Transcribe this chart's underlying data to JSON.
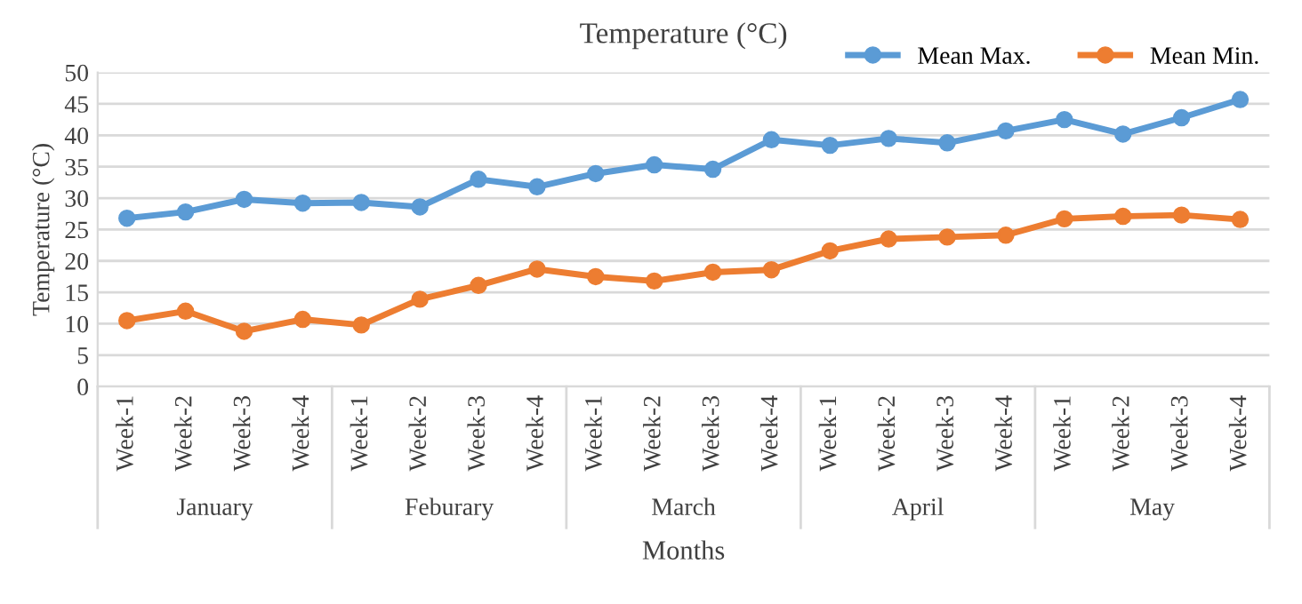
{
  "chart_data": {
    "type": "line",
    "title": "Temperature (°C)",
    "xlabel": "Months",
    "ylabel": "Temperature (°C)",
    "categories": [
      "Week-1",
      "Week-2",
      "Week-3",
      "Week-4",
      "Week-1",
      "Week-2",
      "Week-3",
      "Week-4",
      "Week-1",
      "Week-2",
      "Week-3",
      "Week-4",
      "Week-1",
      "Week-2",
      "Week-3",
      "Week-4",
      "Week-1",
      "Week-2",
      "Week-3",
      "Week-4"
    ],
    "annotations": [
      "January",
      "Feburary",
      "March",
      "April",
      "May"
    ],
    "series": [
      {
        "name": "Mean Max.",
        "color": "#5b9bd5",
        "values": [
          26.8,
          27.8,
          29.8,
          29.2,
          29.3,
          28.6,
          33.0,
          31.8,
          33.9,
          35.3,
          34.6,
          39.3,
          38.4,
          39.5,
          38.8,
          40.7,
          42.5,
          40.2,
          42.8,
          45.7
        ]
      },
      {
        "name": "Mean Min.",
        "color": "#ed7d31",
        "values": [
          10.5,
          12.0,
          8.8,
          10.7,
          9.8,
          13.9,
          16.1,
          18.7,
          17.5,
          16.8,
          18.2,
          18.6,
          21.6,
          23.5,
          23.8,
          24.1,
          26.7,
          27.1,
          27.3,
          26.6
        ]
      }
    ],
    "ylim": [
      0,
      50
    ],
    "yticks": [
      0,
      5,
      10,
      15,
      20,
      25,
      30,
      35,
      40,
      45,
      50
    ],
    "grid": "y",
    "legend": "top right",
    "marker": "circle",
    "line_style": "solid"
  }
}
